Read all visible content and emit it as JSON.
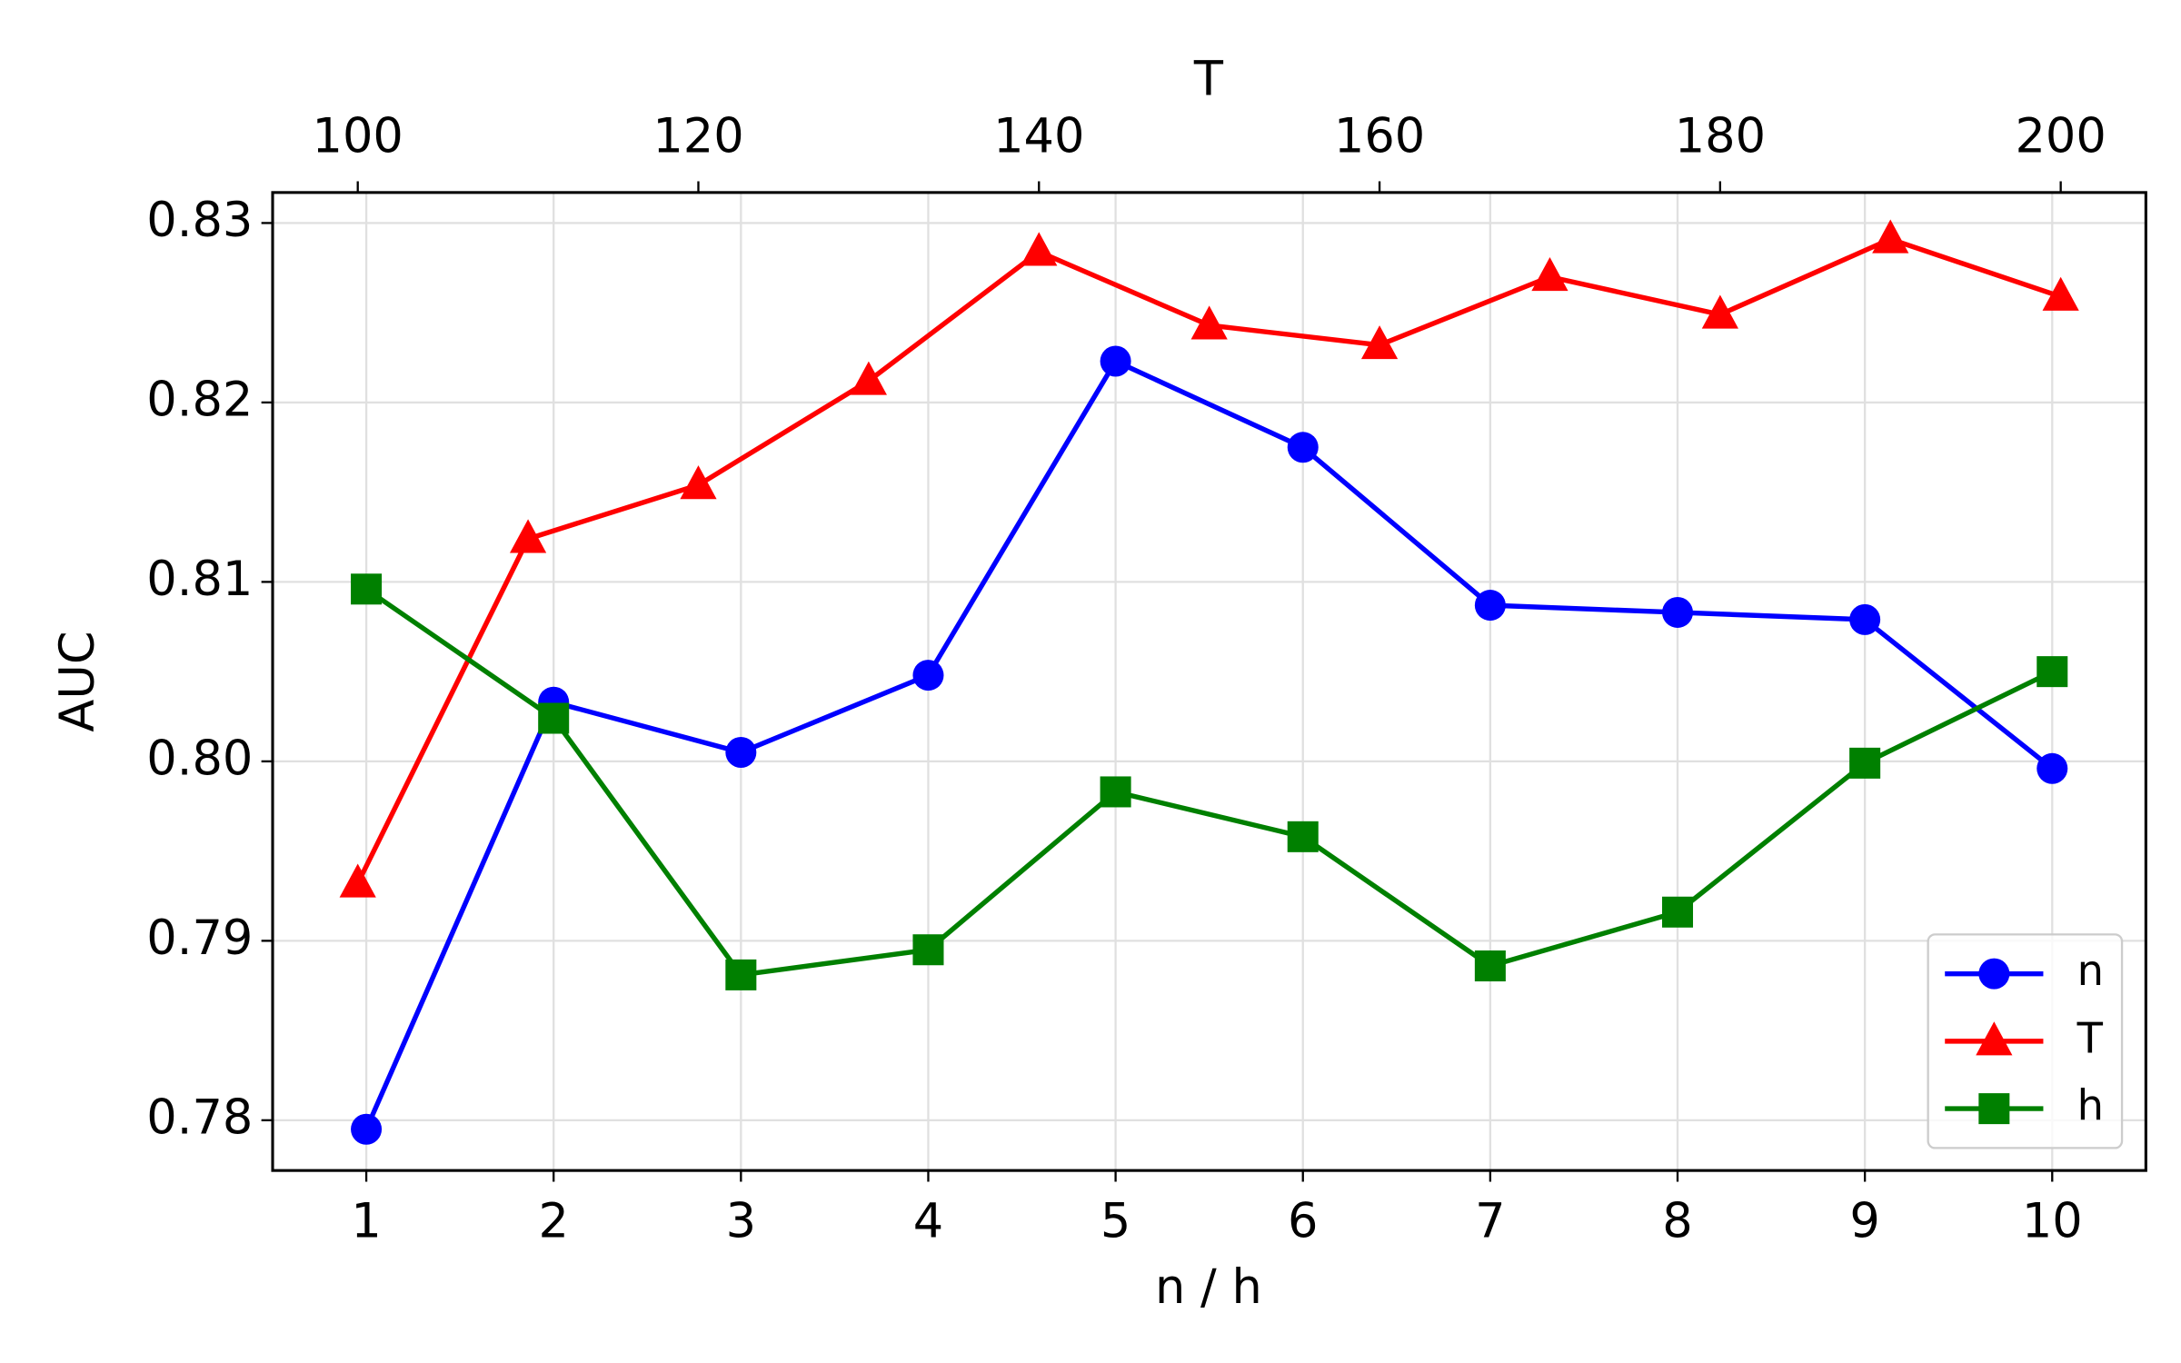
{
  "chart_data": {
    "type": "line",
    "xlabel": "n / h",
    "x2label": "T",
    "ylabel": "AUC",
    "xlim": [
      0.5,
      10.5
    ],
    "xticks": [
      1,
      2,
      3,
      4,
      5,
      6,
      7,
      8,
      9,
      10
    ],
    "x2lim": [
      95,
      205
    ],
    "x2ticks": [
      100,
      120,
      140,
      160,
      180,
      200
    ],
    "ylim": [
      0.7772,
      0.8317
    ],
    "yticks": [
      0.78,
      0.79,
      {
        "value": 0.8,
        "label": "0.80"
      },
      0.81,
      0.82,
      0.83
    ],
    "grid": true,
    "legend": "lower right",
    "series": [
      {
        "name": "n",
        "color": "#0000ff",
        "marker": "circle",
        "x": [
          1,
          2,
          3,
          4,
          5,
          6,
          7,
          8,
          9,
          10
        ],
        "values": [
          0.7795,
          0.8033,
          0.8005,
          0.8048,
          0.8223,
          0.8175,
          0.8087,
          0.8083,
          0.8079,
          0.7996
        ]
      },
      {
        "name": "T",
        "color": "#ff0000",
        "marker": "triangle",
        "axis": "x2",
        "x": [
          100,
          110,
          120,
          130,
          140,
          150,
          160,
          170,
          180,
          190,
          200
        ],
        "values": [
          0.7932,
          0.8124,
          0.8154,
          0.8212,
          0.8284,
          0.8243,
          0.8232,
          0.827,
          0.8249,
          0.8291,
          0.8259
        ]
      },
      {
        "name": "h",
        "color": "#008000",
        "marker": "square",
        "x": [
          1,
          2,
          3,
          4,
          5,
          6,
          7,
          8,
          9,
          10
        ],
        "values": [
          0.8096,
          0.8024,
          0.7881,
          0.7895,
          0.7983,
          0.7958,
          0.7886,
          0.7916,
          0.7999,
          0.805
        ]
      }
    ]
  }
}
